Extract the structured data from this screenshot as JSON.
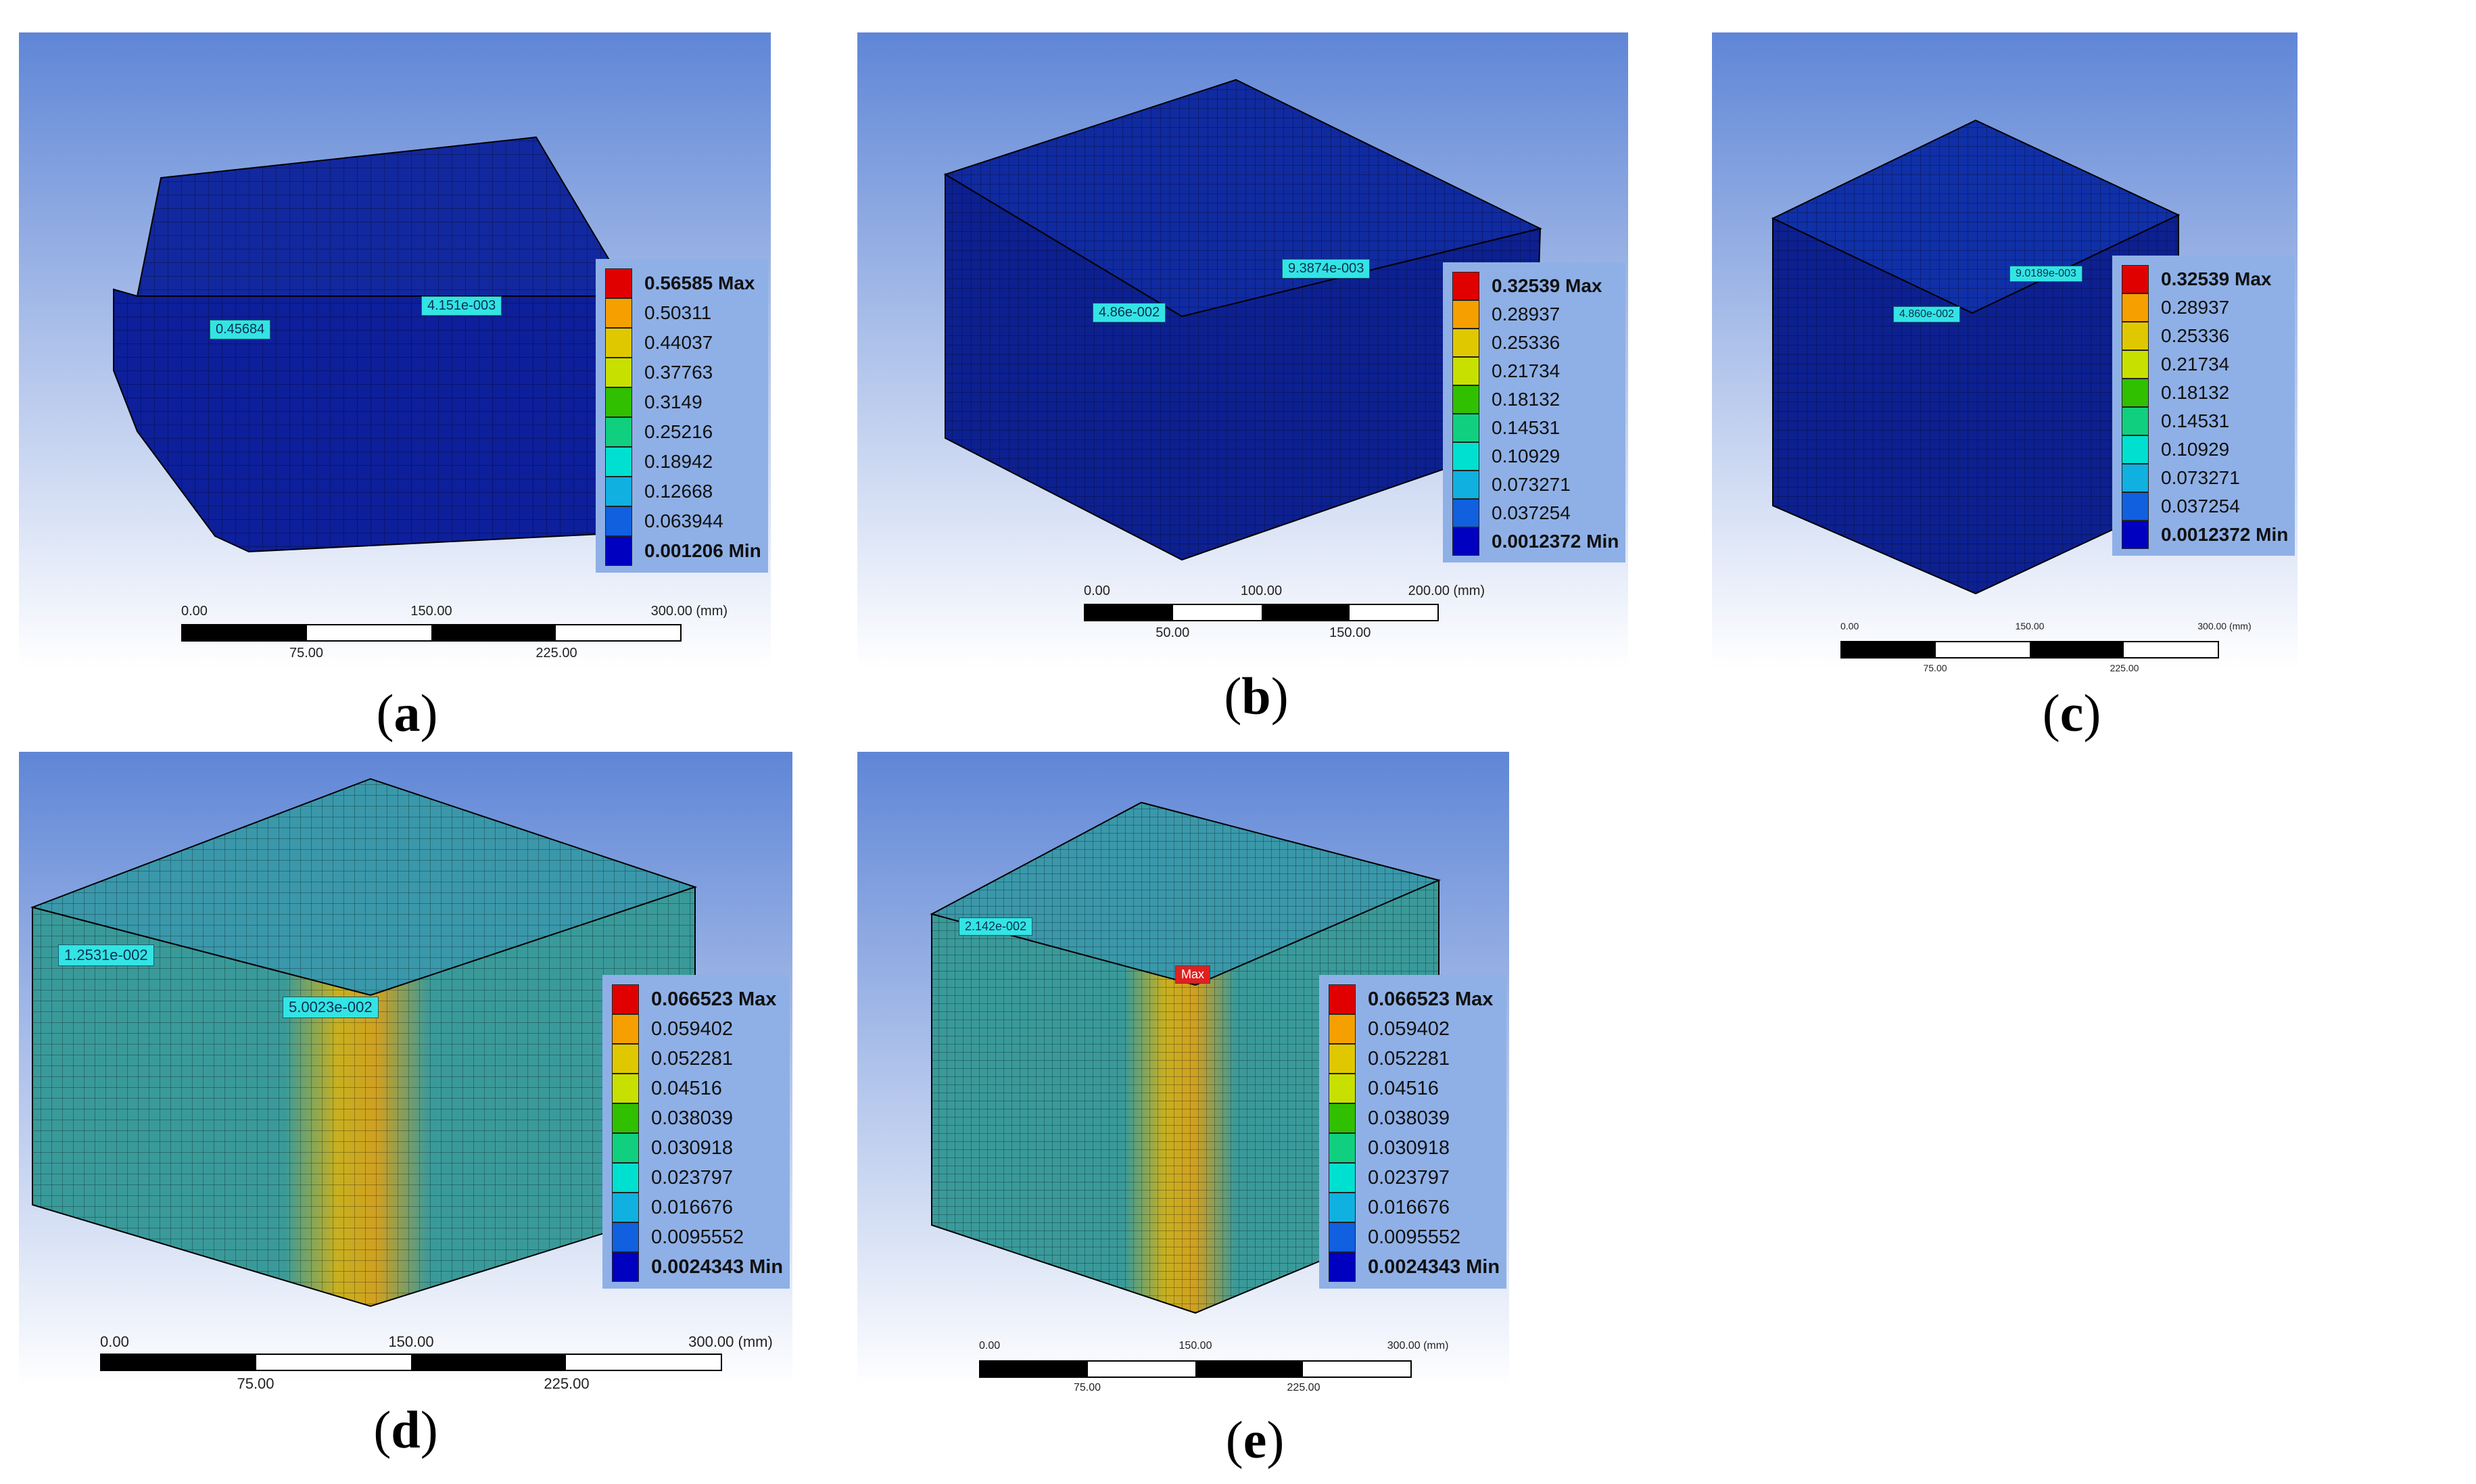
{
  "panels": [
    {
      "id": "a",
      "caption": "a",
      "legend": [
        "0.56585 Max",
        "0.50311",
        "0.44037",
        "0.37763",
        "0.3149",
        "0.25216",
        "0.18942",
        "0.12668",
        "0.063944",
        "0.001206 Min"
      ],
      "probes": [
        "0.45684",
        "4.151e-003"
      ],
      "scale": {
        "top": [
          "0.00",
          "150.00",
          "300.00 (mm)"
        ],
        "bottom": [
          "75.00",
          "225.00"
        ]
      }
    },
    {
      "id": "b",
      "caption": "b",
      "legend": [
        "0.32539 Max",
        "0.28937",
        "0.25336",
        "0.21734",
        "0.18132",
        "0.14531",
        "0.10929",
        "0.073271",
        "0.037254",
        "0.0012372 Min"
      ],
      "probes": [
        "4.86e-002",
        "9.3874e-003"
      ],
      "scale": {
        "top": [
          "0.00",
          "100.00",
          "200.00 (mm)"
        ],
        "bottom": [
          "50.00",
          "150.00"
        ]
      }
    },
    {
      "id": "c",
      "caption": "c",
      "legend": [
        "0.32539 Max",
        "0.28937",
        "0.25336",
        "0.21734",
        "0.18132",
        "0.14531",
        "0.10929",
        "0.073271",
        "0.037254",
        "0.0012372 Min"
      ],
      "probes": [
        "4.860e-002",
        "9.0189e-003"
      ],
      "scale": {
        "top": [
          "0.00",
          "150.00",
          "300.00 (mm)"
        ],
        "bottom": [
          "75.00",
          "225.00"
        ]
      }
    },
    {
      "id": "d",
      "caption": "d",
      "legend": [
        "0.066523 Max",
        "0.059402",
        "0.052281",
        "0.04516",
        "0.038039",
        "0.030918",
        "0.023797",
        "0.016676",
        "0.0095552",
        "0.0024343 Min"
      ],
      "probes": [
        "1.2531e-002",
        "5.0023e-002"
      ],
      "scale": {
        "top": [
          "0.00",
          "150.00",
          "300.00 (mm)"
        ],
        "bottom": [
          "75.00",
          "225.00"
        ]
      }
    },
    {
      "id": "e",
      "caption": "e",
      "legend": [
        "0.066523 Max",
        "0.059402",
        "0.052281",
        "0.04516",
        "0.038039",
        "0.030918",
        "0.023797",
        "0.016676",
        "0.0095552",
        "0.0024343 Min"
      ],
      "probes": [
        "2.142e-002",
        "Max"
      ],
      "scale": {
        "top": [
          "0.00",
          "150.00",
          "300.00 (mm)"
        ],
        "bottom": [
          "75.00",
          "225.00"
        ]
      }
    }
  ],
  "colors": {
    "bg_top": "#5f86d6",
    "bg_bottom": "#ffffff",
    "legend_bg": "#8fb0e6",
    "probe": "#33e4e4",
    "contour": [
      "#e00000",
      "#f5a000",
      "#e0c800",
      "#c8e000",
      "#30c000",
      "#10d080",
      "#00e0d0",
      "#10b0e0",
      "#1060e0",
      "#0000c0"
    ]
  }
}
